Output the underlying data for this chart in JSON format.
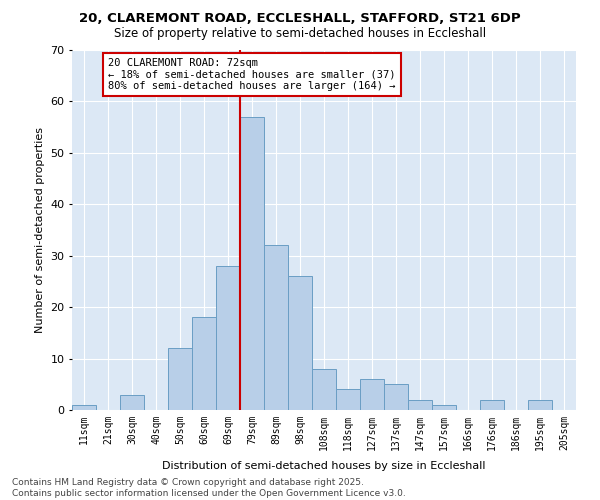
{
  "title1": "20, CLAREMONT ROAD, ECCLESHALL, STAFFORD, ST21 6DP",
  "title2": "Size of property relative to semi-detached houses in Eccleshall",
  "xlabel": "Distribution of semi-detached houses by size in Eccleshall",
  "ylabel": "Number of semi-detached properties",
  "categories": [
    "11sqm",
    "21sqm",
    "30sqm",
    "40sqm",
    "50sqm",
    "60sqm",
    "69sqm",
    "79sqm",
    "89sqm",
    "98sqm",
    "108sqm",
    "118sqm",
    "127sqm",
    "137sqm",
    "147sqm",
    "157sqm",
    "166sqm",
    "176sqm",
    "186sqm",
    "195sqm",
    "205sqm"
  ],
  "values": [
    1,
    0,
    3,
    0,
    12,
    18,
    28,
    57,
    32,
    26,
    8,
    4,
    6,
    5,
    2,
    1,
    0,
    2,
    0,
    2,
    0
  ],
  "bar_color": "#b8cfe8",
  "bar_edge_color": "#6a9ec4",
  "vline_x": 6.5,
  "vline_color": "#cc0000",
  "annotation_text": "20 CLAREMONT ROAD: 72sqm\n← 18% of semi-detached houses are smaller (37)\n80% of semi-detached houses are larger (164) →",
  "annotation_box_color": "#ffffff",
  "annotation_box_edge": "#cc0000",
  "ylim": [
    0,
    70
  ],
  "yticks": [
    0,
    10,
    20,
    30,
    40,
    50,
    60,
    70
  ],
  "background_color": "#dce8f5",
  "footer": "Contains HM Land Registry data © Crown copyright and database right 2025.\nContains public sector information licensed under the Open Government Licence v3.0.",
  "title1_fontsize": 9.5,
  "title2_fontsize": 8.5,
  "xlabel_fontsize": 8,
  "ylabel_fontsize": 8,
  "annotation_fontsize": 7.5,
  "footer_fontsize": 6.5
}
